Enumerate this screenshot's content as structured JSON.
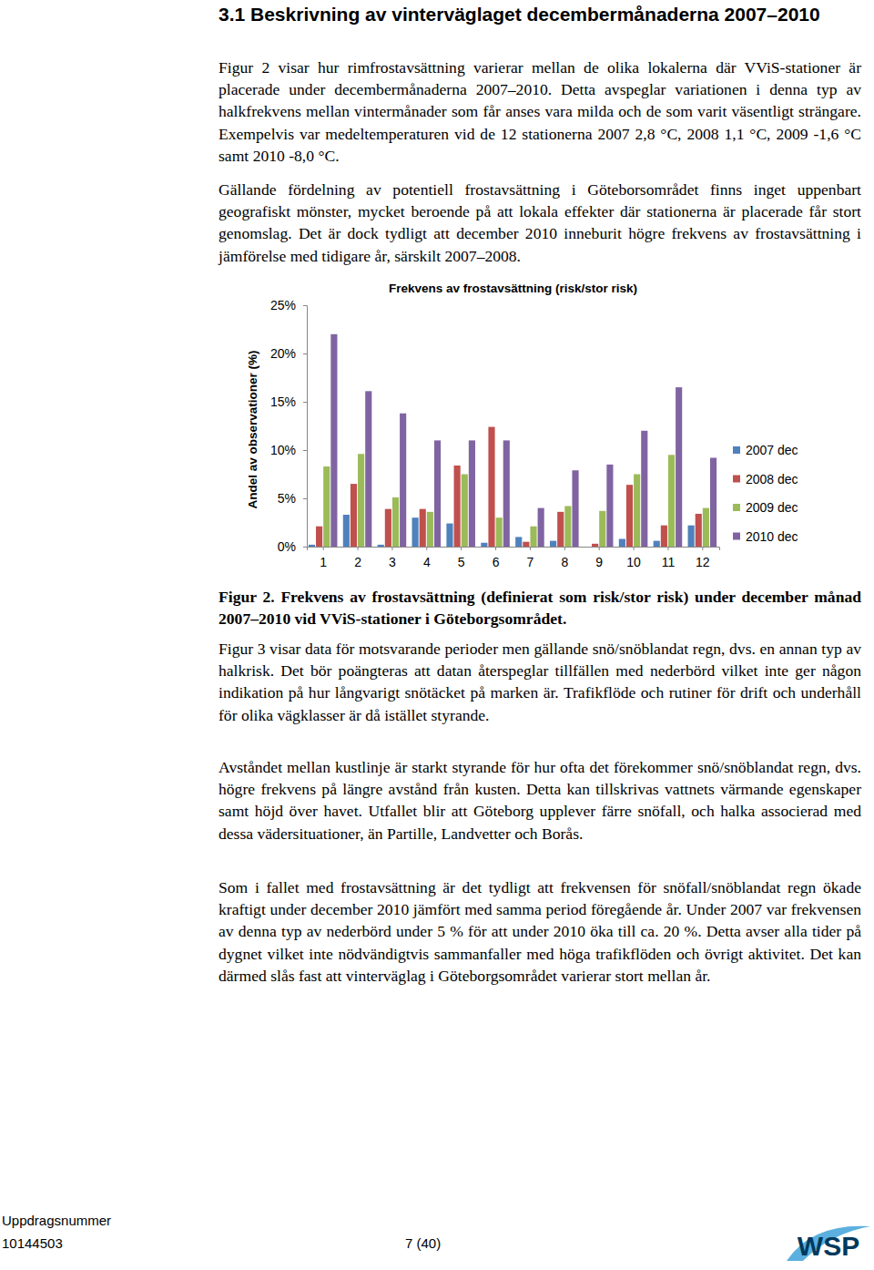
{
  "document": {
    "heading": "3.1 Beskrivning av vinterväglaget decembermånaderna 2007–2010",
    "paragraphs_before": [
      "Figur 2 visar hur rimfrostavsättning varierar mellan de olika lokalerna där VViS-stationer är placerade under decembermånaderna 2007–2010. Detta avspeglar variationen i denna typ av halkfrekvens mellan vintermånader som får anses vara milda och de som varit väsentligt strängare. Exempelvis var medeltemperaturen vid de 12 stationerna 2007 2,8 °C, 2008 1,1 °C, 2009 -1,6 °C samt 2010 -8,0 °C.",
      "Gällande fördelning av potentiell frostavsättning i Göteborsområdet finns inget uppenbart geografiskt mönster, mycket beroende på att lokala effekter där stationerna är placerade får stort genomslag. Det är dock tydligt att december 2010 inneburit högre frekvens av frostavsättning i jämförelse med tidigare år, särskilt 2007–2008."
    ],
    "caption": "Figur 2. Frekvens av frostavsättning (definierat som risk/stor risk) under december månad 2007–2010 vid VViS-stationer i Göteborgsområdet.",
    "paragraphs_after": [
      "Figur 3 visar data för motsvarande perioder men gällande snö/snöblandat regn, dvs. en annan typ av halkrisk. Det bör poängteras att datan återspeglar tillfällen med nederbörd vilket inte ger någon indikation på hur långvarigt snötäcket på marken är. Trafikflöde och rutiner för drift och underhåll för olika vägklasser är då istället styrande.",
      "Avståndet mellan kustlinje är starkt styrande för hur ofta det förekommer snö/snöblandat regn, dvs. högre frekvens på längre avstånd från kusten. Detta kan tillskrivas vattnets värmande egenskaper samt höjd över havet. Utfallet blir att Göteborg upplever färre snöfall, och halka associerad med dessa vädersituationer, än Partille, Landvetter och Borås.",
      "Som i fallet med frostavsättning är det tydligt att frekvensen för snöfall/snöblandat regn ökade kraftigt under december 2010 jämfört med samma period föregående år. Under 2007 var frekvensen av denna typ av nederbörd under 5 % för att under 2010 öka till ca. 20 %. Detta avser alla tider på dygnet vilket inte nödvändigtvis sammanfaller med höga trafikflöden och övrigt aktivitet. Det kan därmed slås fast att vinterväglag i Göteborgsområdet varierar stort mellan år."
    ],
    "footer": {
      "label": "Uppdragsnummer",
      "number": "10144503",
      "page": "7 (40)",
      "logo": "WSP"
    }
  },
  "chart_data": {
    "type": "bar",
    "title": "Frekvens av frostavsättning (risk/stor risk)",
    "y_label": "Andel av observationer (%)",
    "categories": [
      "1",
      "2",
      "3",
      "4",
      "5",
      "6",
      "7",
      "8",
      "9",
      "10",
      "11",
      "12"
    ],
    "series": [
      {
        "name": "2007 dec",
        "color": "#4f81bd",
        "values": [
          0.2,
          3.3,
          0.2,
          3.0,
          2.4,
          0.4,
          1.0,
          0.6,
          0.0,
          0.8,
          0.6,
          2.2
        ]
      },
      {
        "name": "2008 dec",
        "color": "#c0504d",
        "values": [
          2.1,
          6.5,
          3.9,
          3.9,
          8.4,
          12.4,
          0.5,
          3.6,
          0.3,
          6.4,
          2.2,
          3.4
        ]
      },
      {
        "name": "2009 dec",
        "color": "#9bbb59",
        "values": [
          8.3,
          9.6,
          5.1,
          3.6,
          7.5,
          3.0,
          2.1,
          4.2,
          3.7,
          7.5,
          9.5,
          4.0
        ]
      },
      {
        "name": "2010 dec",
        "color": "#8064a2",
        "values": [
          22.0,
          16.1,
          13.8,
          11.0,
          11.0,
          11.0,
          4.0,
          7.9,
          8.5,
          12.0,
          16.5,
          9.2
        ]
      }
    ],
    "ylim": [
      0,
      25
    ],
    "yticks": [
      {
        "value": 0,
        "label": "0%"
      },
      {
        "value": 5,
        "label": "5%"
      },
      {
        "value": 10,
        "label": "10%"
      },
      {
        "value": 15,
        "label": "15%"
      },
      {
        "value": 20,
        "label": "20%"
      },
      {
        "value": 25,
        "label": "25%"
      }
    ],
    "grid": false,
    "legend": "right"
  }
}
